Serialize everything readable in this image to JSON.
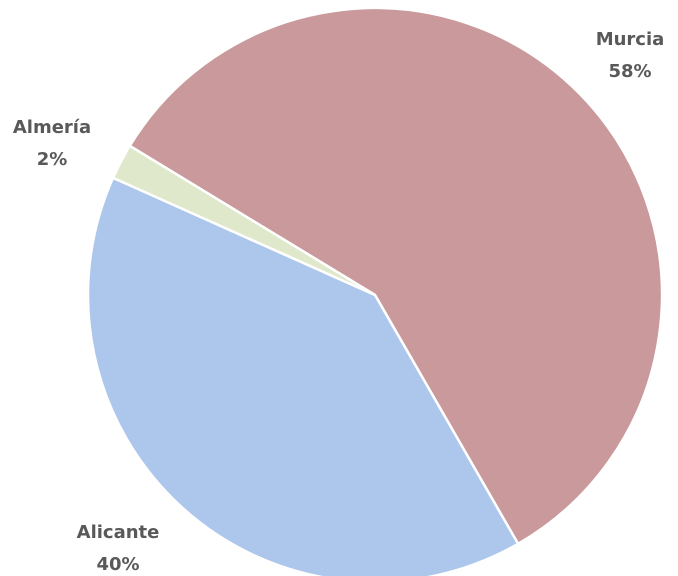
{
  "chart_data": {
    "type": "pie",
    "categories": [
      "Murcia",
      "Alicante",
      "Almería"
    ],
    "values": [
      58,
      40,
      2
    ],
    "value_labels": [
      "58%",
      "40%",
      "2%"
    ],
    "colors": [
      "#c9999b",
      "#adc6eb",
      "#dfe8cb"
    ]
  }
}
